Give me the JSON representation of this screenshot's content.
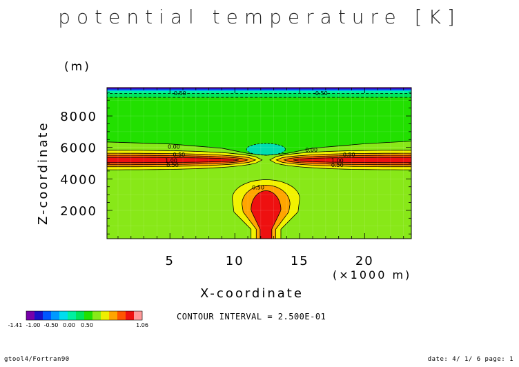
{
  "chart_data": {
    "type": "heatmap",
    "title": "potential temperature [K]",
    "xlabel": "X-coordinate",
    "ylabel": "Z-coordinate",
    "xunit": "(×1000 m)",
    "yunit": "(m)",
    "xlim": [
      0.15,
      23.6
    ],
    "ylim": [
      200,
      9800
    ],
    "xticks": [
      5,
      10,
      15,
      20
    ],
    "yticks": [
      2000,
      4000,
      6000,
      8000
    ],
    "contour_labels": [
      {
        "text": "-0.50",
        "x": 5.7,
        "z": 9450
      },
      {
        "text": "-0.50",
        "x": 16.6,
        "z": 9450
      },
      {
        "text": "0.00",
        "x": 5.3,
        "z": 6050
      },
      {
        "text": "0.00",
        "x": 15.9,
        "z": 5850
      },
      {
        "text": "0.50",
        "x": 5.7,
        "z": 5550
      },
      {
        "text": "0.50",
        "x": 18.8,
        "z": 5550
      },
      {
        "text": "1.00",
        "x": 5.1,
        "z": 5170
      },
      {
        "text": "1.00",
        "x": 17.9,
        "z": 5170
      },
      {
        "text": "0.50",
        "x": 5.2,
        "z": 4880
      },
      {
        "text": "0.50",
        "x": 17.9,
        "z": 4880
      },
      {
        "text": "0.50",
        "x": 11.8,
        "z": 3460
      }
    ],
    "colorbar": {
      "levels": [
        "-1.41",
        "-1.00",
        "-0.50",
        "0.00",
        "0.50",
        "1.06"
      ],
      "colors": [
        "#7700aa",
        "#1a10c8",
        "#0055ff",
        "#0099ff",
        "#00ddee",
        "#00f0a0",
        "#00e55a",
        "#22e000",
        "#88ea18",
        "#eeee00",
        "#ffa500",
        "#ff5500",
        "#ee1010",
        "#ff9a9a"
      ]
    },
    "field_colors": {
      "background": "#88e818",
      "upper": "#22e000",
      "top_band": "#00e55a",
      "top_band2": "#00f0a0",
      "top_edge": "#0099ff",
      "top_edge2": "#1a10c8",
      "top_edge3": "#7700aa",
      "cyan_blob": "#00ddb0",
      "yellow": "#f2f200",
      "orange": "#ffa500",
      "deep_orange": "#ff5500",
      "red": "#ee1010"
    }
  },
  "interval_text": "CONTOUR INTERVAL = 2.500E-01",
  "footer": {
    "left": "gtool4/Fortran90",
    "right": "date: 4/ 1/ 6 page: 1"
  }
}
